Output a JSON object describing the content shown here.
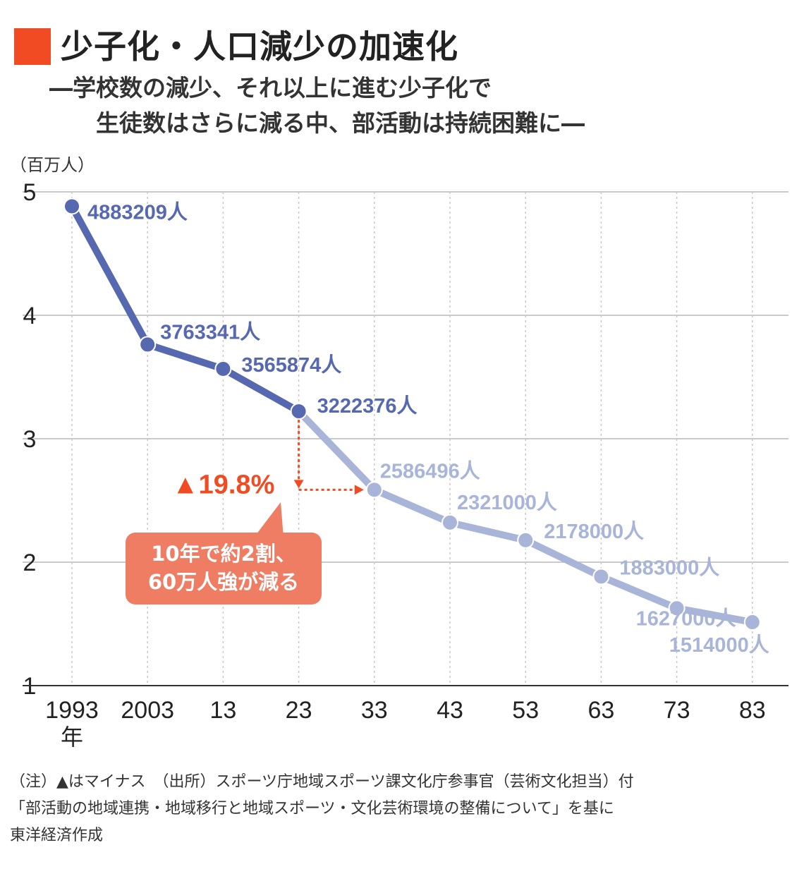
{
  "header": {
    "title": "少子化・人口減少の加速化",
    "subtitle_line1": "―学校数の減少、それ以上に進む少子化で",
    "subtitle_line2": "生徒数はさらに減る中、部活動は持続困難に―",
    "unit_label": "（百万人）"
  },
  "colors": {
    "accent": "#f04b22",
    "actual_series": "#5669b0",
    "projected_series": "#a9b5d8",
    "callout": "#ef7d63",
    "grid": "#b8b8b8"
  },
  "chart_data": {
    "type": "line",
    "x": [
      "1993",
      "2003",
      "13",
      "23",
      "33",
      "43",
      "53",
      "63",
      "73",
      "83"
    ],
    "x_unit_label": "年",
    "ylim": [
      1,
      5
    ],
    "yticks": [
      "1",
      "2",
      "3",
      "4",
      "5"
    ],
    "grid": true,
    "series": [
      {
        "values": [
          4.883209,
          3.763341,
          3.565874,
          3.222376,
          2.586496,
          2.321,
          2.178,
          1.883,
          1.627,
          1.514
        ],
        "labels": [
          "4883209人",
          "3763341人",
          "3565874人",
          "3222376人",
          "2586496人",
          "2321000人",
          "2178000人",
          "1883000人",
          "1627000人",
          "1514000人"
        ],
        "actual_until_index": 3
      }
    ],
    "annotation": {
      "change": "▲19.8%",
      "from_index": 3,
      "to_index": 4,
      "callout_line1": "10年で約2割、",
      "callout_line2": "60万人強が減る"
    }
  },
  "footer": {
    "note_line1": "（注）▲はマイナス　（出所）スポーツ庁地域スポーツ課文化庁参事官（芸術文化担当）付",
    "note_line2": "「部活動の地域連携・地域移行と地域スポーツ・文化芸術環境の整備について」を基に",
    "note_line3": "東洋経済作成"
  }
}
